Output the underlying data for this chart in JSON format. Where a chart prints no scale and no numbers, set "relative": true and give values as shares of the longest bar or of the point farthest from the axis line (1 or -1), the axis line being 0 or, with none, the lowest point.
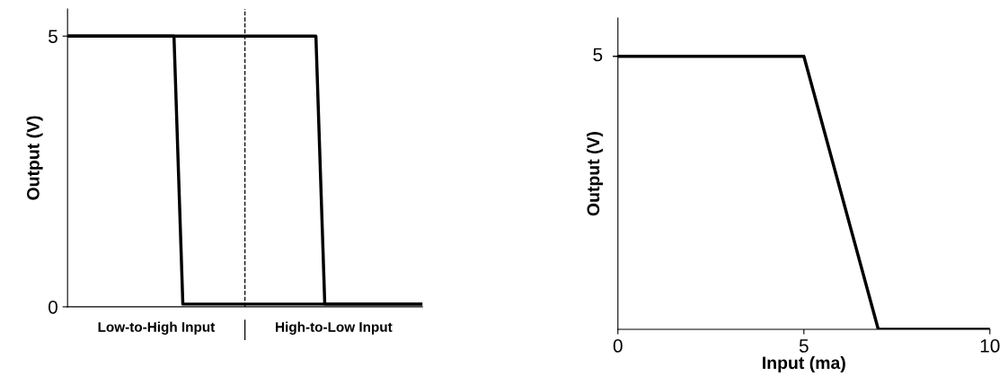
{
  "chart_data": [
    {
      "type": "line",
      "categories": [
        null,
        null,
        null,
        null,
        null,
        null,
        null,
        null,
        null,
        null,
        "Low-to-High Input",
        null,
        null,
        null,
        null,
        null,
        null,
        null,
        null,
        null,
        null,
        null,
        null,
        null,
        null,
        null,
        null,
        null,
        null,
        null,
        "High-to-Low Input",
        null,
        null,
        null,
        null,
        null,
        null,
        null,
        null,
        null,
        null
      ],
      "ylim": [
        0,
        5.5
      ],
      "yticks": [
        0,
        5
      ],
      "ylabel": "Output (V)",
      "grid": false,
      "legend": false,
      "marker": "none",
      "line_style": "solid",
      "series": [
        {
          "color": "#000000",
          "values": [
            5,
            5,
            5,
            5,
            5,
            5,
            5,
            5,
            5,
            5,
            5,
            5,
            5,
            0.05,
            0.05,
            0.05,
            0.05,
            0.05,
            0.05,
            0.05,
            0.05,
            0.05,
            0.05,
            0.05,
            0.05,
            0.05,
            0.05,
            0.05,
            0.05,
            0.05,
            0.05,
            0.05,
            0.05,
            0.05,
            0.05,
            0.05,
            0.05,
            0.05,
            0.05,
            0.05,
            0.05
          ]
        },
        {
          "color": "#000000",
          "values": [
            5,
            5,
            5,
            5,
            5,
            5,
            5,
            5,
            5,
            5,
            5,
            5,
            5,
            5,
            5,
            5,
            5,
            5,
            5,
            5,
            5,
            5,
            5,
            5,
            5,
            5,
            5,
            5,
            5,
            0.05,
            0.05,
            0.05,
            0.05,
            0.05,
            0.05,
            0.05,
            0.05,
            0.05,
            0.05,
            0.05,
            0.05
          ]
        }
      ]
    },
    {
      "type": "line",
      "relative": true,
      "xlim": [
        0,
        10
      ],
      "xticks": [
        0,
        5,
        10
      ],
      "xlabel": "Input (ma)",
      "ylabel": "Output (V)",
      "grid": false,
      "legend": false,
      "marker": "none",
      "line_style": "solid",
      "annotations": [
        {
          "text": "5",
          "x": 0,
          "y": 1
        }
      ],
      "series": [
        {
          "color": "#000000",
          "x": [
            0,
            5,
            7,
            10
          ],
          "values": [
            1,
            1,
            0,
            0
          ]
        }
      ]
    }
  ]
}
